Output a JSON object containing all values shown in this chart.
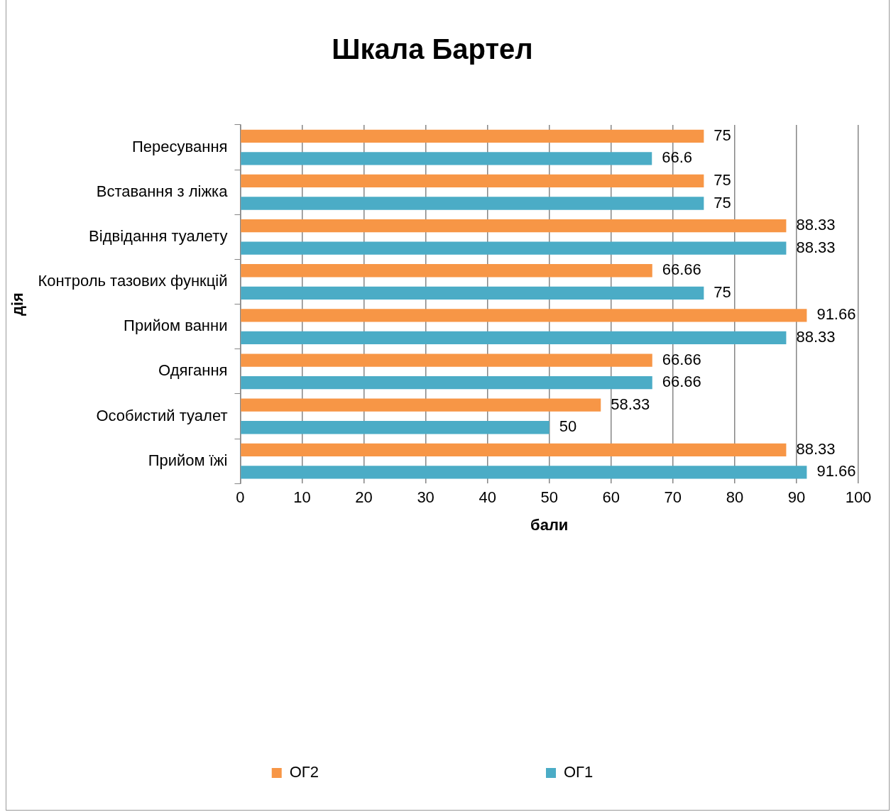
{
  "chart_data": {
    "type": "bar",
    "orientation": "horizontal",
    "title": "Шкала Бартел",
    "xlabel": "бали",
    "ylabel": "дія",
    "categories": [
      "Пересування",
      "Вставання з ліжка",
      "Відвідання туалету",
      "Контроль тазових функцій",
      "Прийом ванни",
      "Одягання",
      "Особистий туалет",
      "Прийом їжі"
    ],
    "series": [
      {
        "name": "ОГ2",
        "color": "#f79646",
        "values": [
          75,
          75,
          88.33,
          66.66,
          91.66,
          66.66,
          58.33,
          88.33
        ]
      },
      {
        "name": "ОГ1",
        "color": "#4bacc6",
        "values": [
          66.6,
          75,
          88.33,
          75,
          88.33,
          66.66,
          50,
          91.66
        ]
      }
    ],
    "xlim": [
      0,
      100
    ],
    "xticks": [
      0,
      10,
      20,
      30,
      40,
      50,
      60,
      70,
      80,
      90,
      100
    ],
    "grid": "x",
    "legend": "bottom",
    "data_labels": true
  }
}
